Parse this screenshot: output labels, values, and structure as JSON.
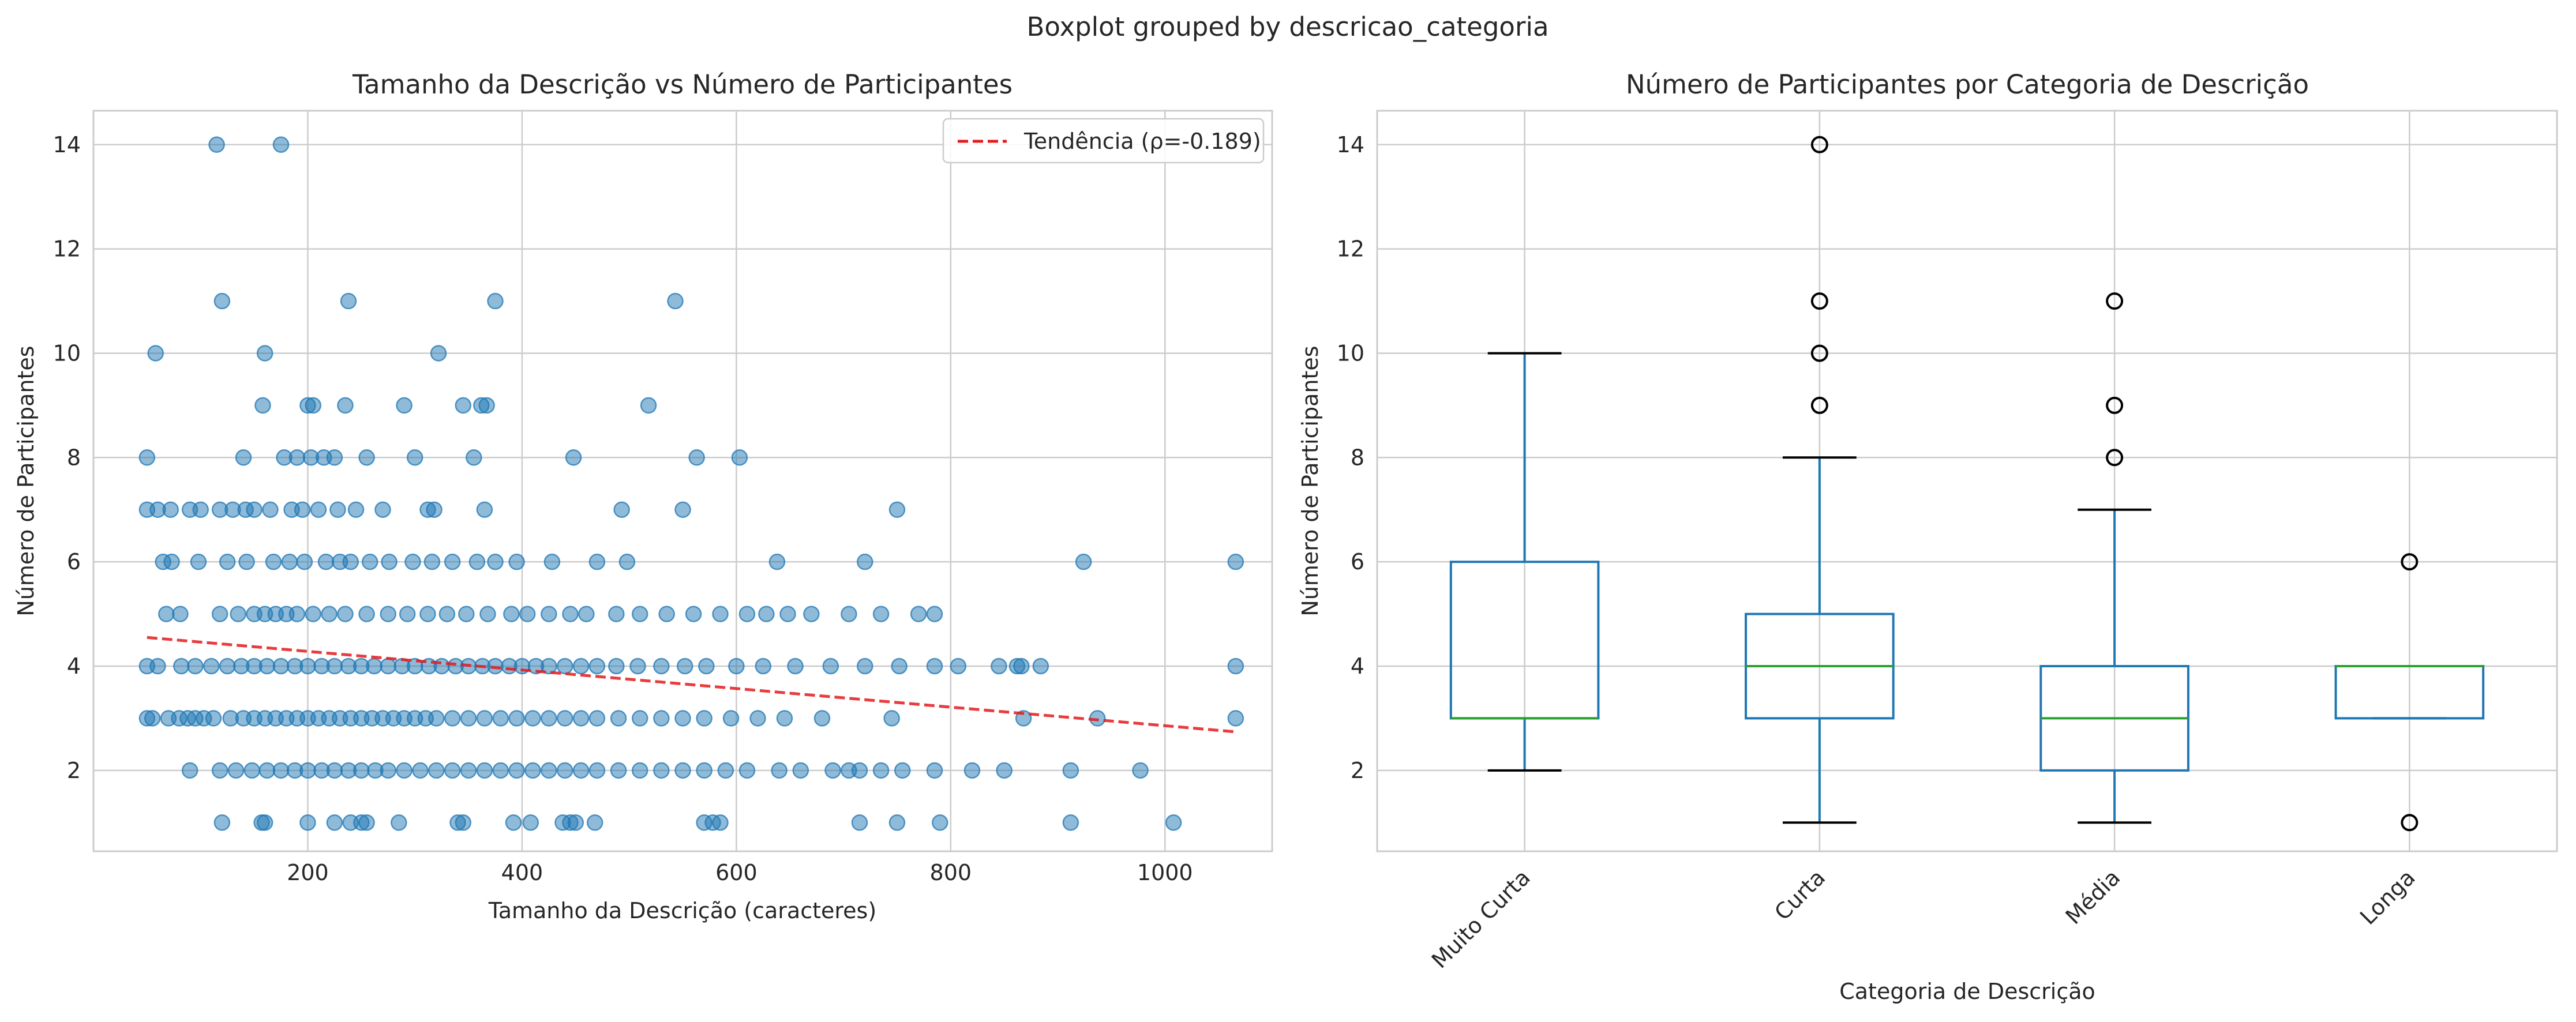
{
  "figure": {
    "suptitle": "Boxplot grouped by descricao_categoria"
  },
  "colors": {
    "background": "#ffffff",
    "grid": "#cccccc",
    "spine": "#cccccc",
    "scatter_point": "#1f77b4",
    "trend_line": "#e41a1c",
    "box": "#1f77b4",
    "median": "#2ca02c",
    "whisker_cap": "#000000",
    "flier_edge": "#000000"
  },
  "chart_data": [
    {
      "type": "scatter",
      "title": "Tamanho da Descrição vs Número de Participantes",
      "xlabel": "Tamanho da Descrição (caracteres)",
      "ylabel": "Número de Participantes",
      "xlim": [
        0,
        1100
      ],
      "ylim": [
        0.45,
        14.65
      ],
      "x_ticks": [
        200,
        400,
        600,
        800,
        1000
      ],
      "y_ticks": [
        2,
        4,
        6,
        8,
        10,
        12,
        14
      ],
      "grid": true,
      "point_alpha": 0.5,
      "trend_line": {
        "label": "Tendência (ρ=-0.189)",
        "x": [
          50,
          1066
        ],
        "y": [
          4.55,
          2.74
        ],
        "style": "dashed"
      },
      "legend_position": "upper right",
      "points": [
        {
          "x": 115,
          "y": 14
        },
        {
          "x": 175,
          "y": 14
        },
        {
          "x": 120,
          "y": 11
        },
        {
          "x": 238,
          "y": 11
        },
        {
          "x": 375,
          "y": 11
        },
        {
          "x": 543,
          "y": 11
        },
        {
          "x": 58,
          "y": 10
        },
        {
          "x": 160,
          "y": 10
        },
        {
          "x": 322,
          "y": 10
        },
        {
          "x": 158,
          "y": 9
        },
        {
          "x": 200,
          "y": 9
        },
        {
          "x": 205,
          "y": 9
        },
        {
          "x": 235,
          "y": 9
        },
        {
          "x": 290,
          "y": 9
        },
        {
          "x": 345,
          "y": 9
        },
        {
          "x": 362,
          "y": 9
        },
        {
          "x": 367,
          "y": 9
        },
        {
          "x": 518,
          "y": 9
        },
        {
          "x": 50,
          "y": 8
        },
        {
          "x": 140,
          "y": 8
        },
        {
          "x": 178,
          "y": 8
        },
        {
          "x": 190,
          "y": 8
        },
        {
          "x": 203,
          "y": 8
        },
        {
          "x": 215,
          "y": 8
        },
        {
          "x": 225,
          "y": 8
        },
        {
          "x": 255,
          "y": 8
        },
        {
          "x": 300,
          "y": 8
        },
        {
          "x": 355,
          "y": 8
        },
        {
          "x": 448,
          "y": 8
        },
        {
          "x": 563,
          "y": 8
        },
        {
          "x": 603,
          "y": 8
        },
        {
          "x": 50,
          "y": 7
        },
        {
          "x": 60,
          "y": 7
        },
        {
          "x": 72,
          "y": 7
        },
        {
          "x": 90,
          "y": 7
        },
        {
          "x": 100,
          "y": 7
        },
        {
          "x": 118,
          "y": 7
        },
        {
          "x": 130,
          "y": 7
        },
        {
          "x": 142,
          "y": 7
        },
        {
          "x": 150,
          "y": 7
        },
        {
          "x": 165,
          "y": 7
        },
        {
          "x": 185,
          "y": 7
        },
        {
          "x": 195,
          "y": 7
        },
        {
          "x": 210,
          "y": 7
        },
        {
          "x": 228,
          "y": 7
        },
        {
          "x": 245,
          "y": 7
        },
        {
          "x": 270,
          "y": 7
        },
        {
          "x": 312,
          "y": 7
        },
        {
          "x": 318,
          "y": 7
        },
        {
          "x": 365,
          "y": 7
        },
        {
          "x": 493,
          "y": 7
        },
        {
          "x": 550,
          "y": 7
        },
        {
          "x": 750,
          "y": 7
        },
        {
          "x": 65,
          "y": 6
        },
        {
          "x": 73,
          "y": 6
        },
        {
          "x": 98,
          "y": 6
        },
        {
          "x": 125,
          "y": 6
        },
        {
          "x": 143,
          "y": 6
        },
        {
          "x": 168,
          "y": 6
        },
        {
          "x": 183,
          "y": 6
        },
        {
          "x": 197,
          "y": 6
        },
        {
          "x": 217,
          "y": 6
        },
        {
          "x": 230,
          "y": 6
        },
        {
          "x": 240,
          "y": 6
        },
        {
          "x": 258,
          "y": 6
        },
        {
          "x": 276,
          "y": 6
        },
        {
          "x": 298,
          "y": 6
        },
        {
          "x": 316,
          "y": 6
        },
        {
          "x": 335,
          "y": 6
        },
        {
          "x": 358,
          "y": 6
        },
        {
          "x": 375,
          "y": 6
        },
        {
          "x": 395,
          "y": 6
        },
        {
          "x": 428,
          "y": 6
        },
        {
          "x": 470,
          "y": 6
        },
        {
          "x": 498,
          "y": 6
        },
        {
          "x": 638,
          "y": 6
        },
        {
          "x": 720,
          "y": 6
        },
        {
          "x": 924,
          "y": 6
        },
        {
          "x": 1066,
          "y": 6
        },
        {
          "x": 68,
          "y": 5
        },
        {
          "x": 81,
          "y": 5
        },
        {
          "x": 118,
          "y": 5
        },
        {
          "x": 135,
          "y": 5
        },
        {
          "x": 150,
          "y": 5
        },
        {
          "x": 160,
          "y": 5
        },
        {
          "x": 170,
          "y": 5
        },
        {
          "x": 180,
          "y": 5
        },
        {
          "x": 190,
          "y": 5
        },
        {
          "x": 205,
          "y": 5
        },
        {
          "x": 220,
          "y": 5
        },
        {
          "x": 235,
          "y": 5
        },
        {
          "x": 255,
          "y": 5
        },
        {
          "x": 275,
          "y": 5
        },
        {
          "x": 293,
          "y": 5
        },
        {
          "x": 312,
          "y": 5
        },
        {
          "x": 330,
          "y": 5
        },
        {
          "x": 348,
          "y": 5
        },
        {
          "x": 368,
          "y": 5
        },
        {
          "x": 390,
          "y": 5
        },
        {
          "x": 405,
          "y": 5
        },
        {
          "x": 425,
          "y": 5
        },
        {
          "x": 445,
          "y": 5
        },
        {
          "x": 460,
          "y": 5
        },
        {
          "x": 488,
          "y": 5
        },
        {
          "x": 510,
          "y": 5
        },
        {
          "x": 535,
          "y": 5
        },
        {
          "x": 560,
          "y": 5
        },
        {
          "x": 585,
          "y": 5
        },
        {
          "x": 610,
          "y": 5
        },
        {
          "x": 628,
          "y": 5
        },
        {
          "x": 648,
          "y": 5
        },
        {
          "x": 670,
          "y": 5
        },
        {
          "x": 705,
          "y": 5
        },
        {
          "x": 735,
          "y": 5
        },
        {
          "x": 770,
          "y": 5
        },
        {
          "x": 785,
          "y": 5
        },
        {
          "x": 50,
          "y": 4
        },
        {
          "x": 60,
          "y": 4
        },
        {
          "x": 82,
          "y": 4
        },
        {
          "x": 95,
          "y": 4
        },
        {
          "x": 110,
          "y": 4
        },
        {
          "x": 125,
          "y": 4
        },
        {
          "x": 138,
          "y": 4
        },
        {
          "x": 150,
          "y": 4
        },
        {
          "x": 162,
          "y": 4
        },
        {
          "x": 175,
          "y": 4
        },
        {
          "x": 188,
          "y": 4
        },
        {
          "x": 200,
          "y": 4
        },
        {
          "x": 213,
          "y": 4
        },
        {
          "x": 225,
          "y": 4
        },
        {
          "x": 238,
          "y": 4
        },
        {
          "x": 250,
          "y": 4
        },
        {
          "x": 262,
          "y": 4
        },
        {
          "x": 275,
          "y": 4
        },
        {
          "x": 288,
          "y": 4
        },
        {
          "x": 300,
          "y": 4
        },
        {
          "x": 313,
          "y": 4
        },
        {
          "x": 325,
          "y": 4
        },
        {
          "x": 338,
          "y": 4
        },
        {
          "x": 350,
          "y": 4
        },
        {
          "x": 363,
          "y": 4
        },
        {
          "x": 375,
          "y": 4
        },
        {
          "x": 388,
          "y": 4
        },
        {
          "x": 400,
          "y": 4
        },
        {
          "x": 413,
          "y": 4
        },
        {
          "x": 425,
          "y": 4
        },
        {
          "x": 440,
          "y": 4
        },
        {
          "x": 455,
          "y": 4
        },
        {
          "x": 470,
          "y": 4
        },
        {
          "x": 488,
          "y": 4
        },
        {
          "x": 508,
          "y": 4
        },
        {
          "x": 530,
          "y": 4
        },
        {
          "x": 552,
          "y": 4
        },
        {
          "x": 572,
          "y": 4
        },
        {
          "x": 600,
          "y": 4
        },
        {
          "x": 625,
          "y": 4
        },
        {
          "x": 655,
          "y": 4
        },
        {
          "x": 688,
          "y": 4
        },
        {
          "x": 720,
          "y": 4
        },
        {
          "x": 752,
          "y": 4
        },
        {
          "x": 785,
          "y": 4
        },
        {
          "x": 807,
          "y": 4
        },
        {
          "x": 845,
          "y": 4
        },
        {
          "x": 862,
          "y": 4
        },
        {
          "x": 866,
          "y": 4
        },
        {
          "x": 884,
          "y": 4
        },
        {
          "x": 1066,
          "y": 4
        },
        {
          "x": 50,
          "y": 3
        },
        {
          "x": 55,
          "y": 3
        },
        {
          "x": 70,
          "y": 3
        },
        {
          "x": 80,
          "y": 3
        },
        {
          "x": 88,
          "y": 3
        },
        {
          "x": 95,
          "y": 3
        },
        {
          "x": 103,
          "y": 3
        },
        {
          "x": 112,
          "y": 3
        },
        {
          "x": 128,
          "y": 3
        },
        {
          "x": 140,
          "y": 3
        },
        {
          "x": 150,
          "y": 3
        },
        {
          "x": 160,
          "y": 3
        },
        {
          "x": 170,
          "y": 3
        },
        {
          "x": 180,
          "y": 3
        },
        {
          "x": 190,
          "y": 3
        },
        {
          "x": 200,
          "y": 3
        },
        {
          "x": 210,
          "y": 3
        },
        {
          "x": 220,
          "y": 3
        },
        {
          "x": 230,
          "y": 3
        },
        {
          "x": 240,
          "y": 3
        },
        {
          "x": 250,
          "y": 3
        },
        {
          "x": 260,
          "y": 3
        },
        {
          "x": 270,
          "y": 3
        },
        {
          "x": 280,
          "y": 3
        },
        {
          "x": 290,
          "y": 3
        },
        {
          "x": 300,
          "y": 3
        },
        {
          "x": 310,
          "y": 3
        },
        {
          "x": 320,
          "y": 3
        },
        {
          "x": 335,
          "y": 3
        },
        {
          "x": 350,
          "y": 3
        },
        {
          "x": 365,
          "y": 3
        },
        {
          "x": 380,
          "y": 3
        },
        {
          "x": 395,
          "y": 3
        },
        {
          "x": 410,
          "y": 3
        },
        {
          "x": 425,
          "y": 3
        },
        {
          "x": 440,
          "y": 3
        },
        {
          "x": 455,
          "y": 3
        },
        {
          "x": 470,
          "y": 3
        },
        {
          "x": 490,
          "y": 3
        },
        {
          "x": 510,
          "y": 3
        },
        {
          "x": 530,
          "y": 3
        },
        {
          "x": 550,
          "y": 3
        },
        {
          "x": 570,
          "y": 3
        },
        {
          "x": 595,
          "y": 3
        },
        {
          "x": 620,
          "y": 3
        },
        {
          "x": 645,
          "y": 3
        },
        {
          "x": 680,
          "y": 3
        },
        {
          "x": 745,
          "y": 3
        },
        {
          "x": 868,
          "y": 3
        },
        {
          "x": 937,
          "y": 3
        },
        {
          "x": 1066,
          "y": 3
        },
        {
          "x": 90,
          "y": 2
        },
        {
          "x": 118,
          "y": 2
        },
        {
          "x": 133,
          "y": 2
        },
        {
          "x": 148,
          "y": 2
        },
        {
          "x": 162,
          "y": 2
        },
        {
          "x": 175,
          "y": 2
        },
        {
          "x": 188,
          "y": 2
        },
        {
          "x": 200,
          "y": 2
        },
        {
          "x": 213,
          "y": 2
        },
        {
          "x": 225,
          "y": 2
        },
        {
          "x": 238,
          "y": 2
        },
        {
          "x": 250,
          "y": 2
        },
        {
          "x": 263,
          "y": 2
        },
        {
          "x": 275,
          "y": 2
        },
        {
          "x": 290,
          "y": 2
        },
        {
          "x": 305,
          "y": 2
        },
        {
          "x": 320,
          "y": 2
        },
        {
          "x": 335,
          "y": 2
        },
        {
          "x": 350,
          "y": 2
        },
        {
          "x": 365,
          "y": 2
        },
        {
          "x": 380,
          "y": 2
        },
        {
          "x": 395,
          "y": 2
        },
        {
          "x": 410,
          "y": 2
        },
        {
          "x": 425,
          "y": 2
        },
        {
          "x": 440,
          "y": 2
        },
        {
          "x": 455,
          "y": 2
        },
        {
          "x": 470,
          "y": 2
        },
        {
          "x": 490,
          "y": 2
        },
        {
          "x": 510,
          "y": 2
        },
        {
          "x": 530,
          "y": 2
        },
        {
          "x": 550,
          "y": 2
        },
        {
          "x": 570,
          "y": 2
        },
        {
          "x": 590,
          "y": 2
        },
        {
          "x": 610,
          "y": 2
        },
        {
          "x": 640,
          "y": 2
        },
        {
          "x": 660,
          "y": 2
        },
        {
          "x": 690,
          "y": 2
        },
        {
          "x": 705,
          "y": 2
        },
        {
          "x": 715,
          "y": 2
        },
        {
          "x": 735,
          "y": 2
        },
        {
          "x": 755,
          "y": 2
        },
        {
          "x": 785,
          "y": 2
        },
        {
          "x": 820,
          "y": 2
        },
        {
          "x": 850,
          "y": 2
        },
        {
          "x": 912,
          "y": 2
        },
        {
          "x": 977,
          "y": 2
        },
        {
          "x": 120,
          "y": 1
        },
        {
          "x": 157,
          "y": 1
        },
        {
          "x": 160,
          "y": 1
        },
        {
          "x": 200,
          "y": 1
        },
        {
          "x": 225,
          "y": 1
        },
        {
          "x": 240,
          "y": 1
        },
        {
          "x": 250,
          "y": 1
        },
        {
          "x": 255,
          "y": 1
        },
        {
          "x": 285,
          "y": 1
        },
        {
          "x": 340,
          "y": 1
        },
        {
          "x": 345,
          "y": 1
        },
        {
          "x": 392,
          "y": 1
        },
        {
          "x": 408,
          "y": 1
        },
        {
          "x": 438,
          "y": 1
        },
        {
          "x": 445,
          "y": 1
        },
        {
          "x": 450,
          "y": 1
        },
        {
          "x": 468,
          "y": 1
        },
        {
          "x": 570,
          "y": 1
        },
        {
          "x": 578,
          "y": 1
        },
        {
          "x": 585,
          "y": 1
        },
        {
          "x": 715,
          "y": 1
        },
        {
          "x": 750,
          "y": 1
        },
        {
          "x": 790,
          "y": 1
        },
        {
          "x": 912,
          "y": 1
        },
        {
          "x": 1008,
          "y": 1
        }
      ]
    },
    {
      "type": "boxplot",
      "title": "Número de Participantes por Categoria de Descrição",
      "xlabel": "Categoria de Descrição",
      "ylabel": "Número de Participantes",
      "ylim": [
        0.45,
        14.65
      ],
      "y_ticks": [
        2,
        4,
        6,
        8,
        10,
        12,
        14
      ],
      "categories": [
        "Muito Curta",
        "Curta",
        "Média",
        "Longa"
      ],
      "x_tick_rotation": 45,
      "grid": true,
      "boxes": [
        {
          "category": "Muito Curta",
          "whisker_low": 2,
          "q1": 3,
          "median": 3,
          "q3": 6,
          "whisker_high": 10,
          "outliers": []
        },
        {
          "category": "Curta",
          "whisker_low": 1,
          "q1": 3,
          "median": 4,
          "q3": 5,
          "whisker_high": 8,
          "outliers": [
            9,
            10,
            11,
            14
          ]
        },
        {
          "category": "Média",
          "whisker_low": 1,
          "q1": 2,
          "median": 3,
          "q3": 4,
          "whisker_high": 7,
          "outliers": [
            8,
            9,
            11
          ]
        },
        {
          "category": "Longa",
          "whisker_low": 3,
          "q1": 3,
          "median": 4,
          "q3": 4,
          "whisker_high": 4,
          "outliers": [
            1,
            6
          ]
        }
      ]
    }
  ]
}
